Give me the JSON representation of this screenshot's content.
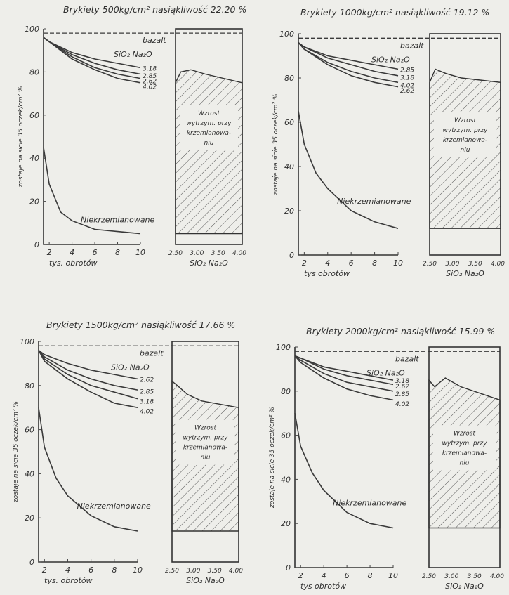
{
  "chart_data": [
    {
      "type": "line",
      "title": "Brykiety 500kg/cm² nasiąkliwość 22.20 %",
      "ylabel": "zostaje na sicie 35 oczek/cm² %",
      "xlabel": "tys. obrotów",
      "ylim": [
        0,
        100
      ],
      "xlim": [
        1.5,
        10
      ],
      "y_ticks": [
        "0",
        "20",
        "40",
        "60",
        "80",
        "100"
      ],
      "x_ticks": [
        "2",
        "4",
        "6",
        "8",
        "10"
      ],
      "bazalt_label": "bazalt",
      "ratio_label": "SiO₂ Na₂O",
      "bazalt_level": 98,
      "series": [
        {
          "name": "3.18",
          "x": [
            1.5,
            2,
            4,
            6,
            8,
            10
          ],
          "y": [
            96,
            94,
            89,
            86,
            84,
            82
          ]
        },
        {
          "name": "2.85",
          "x": [
            1.5,
            2,
            4,
            6,
            8,
            10
          ],
          "y": [
            96,
            94,
            88,
            84,
            81,
            79
          ]
        },
        {
          "name": "2.62",
          "x": [
            1.5,
            2,
            4,
            6,
            8,
            10
          ],
          "y": [
            96,
            94,
            87,
            82,
            79,
            77
          ]
        },
        {
          "name": "4.02",
          "x": [
            1.5,
            2,
            4,
            6,
            8,
            10
          ],
          "y": [
            96,
            94,
            86,
            81,
            77,
            75
          ]
        },
        {
          "name": "Niekrzemianowane",
          "x": [
            1.5,
            2,
            3,
            4,
            6,
            8,
            10
          ],
          "y": [
            45,
            28,
            15,
            11,
            7,
            6,
            5
          ]
        }
      ],
      "right_panel": {
        "x_ticks": [
          "2.50",
          "3.00",
          "3.50",
          "4.00"
        ],
        "xlabel": "SiO₂ Na₂O",
        "annotation": [
          "Wzrost",
          "wytrzym. przy",
          "krzemianowa-",
          "niu"
        ],
        "x": [
          2.5,
          2.62,
          2.85,
          3.18,
          4.02
        ],
        "upper": [
          75,
          80,
          81,
          79,
          75
        ],
        "lower": [
          5,
          5,
          5,
          5,
          5
        ]
      }
    },
    {
      "type": "line",
      "title": "Brykiety 1000kg/cm² nasiąkliwość 19.12 %",
      "ylabel": "zostaje na sicie 35 oczek/cm² %",
      "xlabel": "tys obrotów",
      "ylim": [
        0,
        100
      ],
      "xlim": [
        1.5,
        10
      ],
      "y_ticks": [
        "0",
        "20",
        "40",
        "60",
        "80",
        "100"
      ],
      "x_ticks": [
        "2",
        "4",
        "6",
        "8",
        "10"
      ],
      "bazalt_label": "bazalt",
      "ratio_label": "SiO₂ Na₂O",
      "bazalt_level": 98,
      "series": [
        {
          "name": "2.85",
          "x": [
            1.5,
            2,
            4,
            6,
            8,
            10
          ],
          "y": [
            96,
            94,
            90,
            88,
            86,
            84
          ]
        },
        {
          "name": "3.18",
          "x": [
            1.5,
            2,
            4,
            6,
            8,
            10
          ],
          "y": [
            96,
            94,
            89,
            86,
            83,
            81
          ]
        },
        {
          "name": "4.02",
          "x": [
            1.5,
            2,
            4,
            6,
            8,
            10
          ],
          "y": [
            96,
            93,
            87,
            83,
            80,
            78
          ]
        },
        {
          "name": "2.62",
          "x": [
            1.5,
            2,
            4,
            6,
            8,
            10
          ],
          "y": [
            96,
            93,
            86,
            81,
            78,
            76
          ]
        },
        {
          "name": "Niekrzemianowane",
          "x": [
            1.5,
            2,
            3,
            4,
            6,
            8,
            10
          ],
          "y": [
            65,
            50,
            37,
            30,
            20,
            15,
            12
          ]
        }
      ],
      "right_panel": {
        "x_ticks": [
          "2.50",
          "3.00",
          "3.50",
          "4.00"
        ],
        "xlabel": "SiO₂ Na₂O",
        "annotation": [
          "Wzrost",
          "wytrzym. przy",
          "krzemianowa-",
          "niu"
        ],
        "x": [
          2.5,
          2.62,
          2.85,
          3.18,
          4.02
        ],
        "upper": [
          78,
          84,
          82,
          80,
          78
        ],
        "lower": [
          12,
          12,
          12,
          12,
          12
        ]
      }
    },
    {
      "type": "line",
      "title": "Brykiety 1500kg/cm² nasiąkliwość 17.66 %",
      "ylabel": "zostaje na sicie 35 oczek/cm² %",
      "xlabel": "tys. obrotów",
      "ylim": [
        0,
        100
      ],
      "xlim": [
        1.5,
        10
      ],
      "y_ticks": [
        "0",
        "20",
        "40",
        "60",
        "80",
        "100"
      ],
      "x_ticks": [
        "2",
        "4",
        "6",
        "8",
        "10"
      ],
      "bazalt_label": "bazalt",
      "ratio_label": "SiO₂ Na₂O",
      "bazalt_level": 98,
      "series": [
        {
          "name": "2.62",
          "x": [
            1.5,
            2,
            4,
            6,
            8,
            10
          ],
          "y": [
            96,
            94,
            90,
            87,
            85,
            83
          ]
        },
        {
          "name": "2.85",
          "x": [
            1.5,
            2,
            4,
            6,
            8,
            10
          ],
          "y": [
            96,
            93,
            87,
            83,
            80,
            78
          ]
        },
        {
          "name": "3.18",
          "x": [
            1.5,
            2,
            4,
            6,
            8,
            10
          ],
          "y": [
            96,
            92,
            85,
            80,
            77,
            74
          ]
        },
        {
          "name": "4.02",
          "x": [
            1.5,
            2,
            4,
            6,
            8,
            10
          ],
          "y": [
            96,
            91,
            83,
            77,
            72,
            70
          ]
        },
        {
          "name": "Niekrzemianowane",
          "x": [
            1.5,
            2,
            3,
            4,
            6,
            8,
            10
          ],
          "y": [
            70,
            52,
            38,
            30,
            21,
            16,
            14
          ]
        }
      ],
      "right_panel": {
        "x_ticks": [
          "2.50",
          "3.00",
          "3.50",
          "4.00"
        ],
        "xlabel": "SiO₂ Na₂O",
        "annotation": [
          "Wzrost",
          "wytrzym. przy",
          "krzemianowa-",
          "niu"
        ],
        "x": [
          2.5,
          2.62,
          2.85,
          3.18,
          4.02
        ],
        "upper": [
          82,
          80,
          76,
          73,
          70
        ],
        "lower": [
          14,
          14,
          14,
          14,
          14
        ]
      }
    },
    {
      "type": "line",
      "title": "Brykiety 2000kg/cm² nasiąkliwość 15.99 %",
      "ylabel": "zostaje na sicie 35 oczek/cm² %",
      "xlabel": "tys obrotów",
      "ylim": [
        0,
        100
      ],
      "xlim": [
        1.5,
        10
      ],
      "y_ticks": [
        "0",
        "20",
        "40",
        "60",
        "80",
        "100"
      ],
      "x_ticks": [
        "2",
        "4",
        "6",
        "8",
        "10"
      ],
      "bazalt_label": "bazalt",
      "ratio_label": "SiO₂ Na₂O",
      "bazalt_level": 98,
      "series": [
        {
          "name": "3.18",
          "x": [
            1.5,
            2,
            4,
            6,
            8,
            10
          ],
          "y": [
            96,
            95,
            91,
            89,
            87,
            85
          ]
        },
        {
          "name": "2.62",
          "x": [
            1.5,
            2,
            4,
            6,
            8,
            10
          ],
          "y": [
            96,
            95,
            90,
            87,
            85,
            83
          ]
        },
        {
          "name": "2.85",
          "x": [
            1.5,
            2,
            4,
            6,
            8,
            10
          ],
          "y": [
            96,
            94,
            88,
            84,
            82,
            80
          ]
        },
        {
          "name": "4.02",
          "x": [
            1.5,
            2,
            4,
            6,
            8,
            10
          ],
          "y": [
            96,
            93,
            86,
            81,
            78,
            76
          ]
        },
        {
          "name": "Niekrzemianowane",
          "x": [
            1.5,
            2,
            3,
            4,
            6,
            8,
            10
          ],
          "y": [
            70,
            55,
            43,
            35,
            25,
            20,
            18
          ]
        }
      ],
      "right_panel": {
        "x_ticks": [
          "2.50",
          "3.00",
          "3.50",
          "4.00"
        ],
        "xlabel": "SiO₂ Na₂O",
        "annotation": [
          "Wzrost",
          "wytrzym. przy",
          "krzemianowa-",
          "niu"
        ],
        "x": [
          2.5,
          2.62,
          2.85,
          3.18,
          4.02
        ],
        "upper": [
          85,
          82,
          86,
          82,
          76
        ],
        "lower": [
          18,
          18,
          18,
          18,
          18
        ]
      }
    }
  ]
}
